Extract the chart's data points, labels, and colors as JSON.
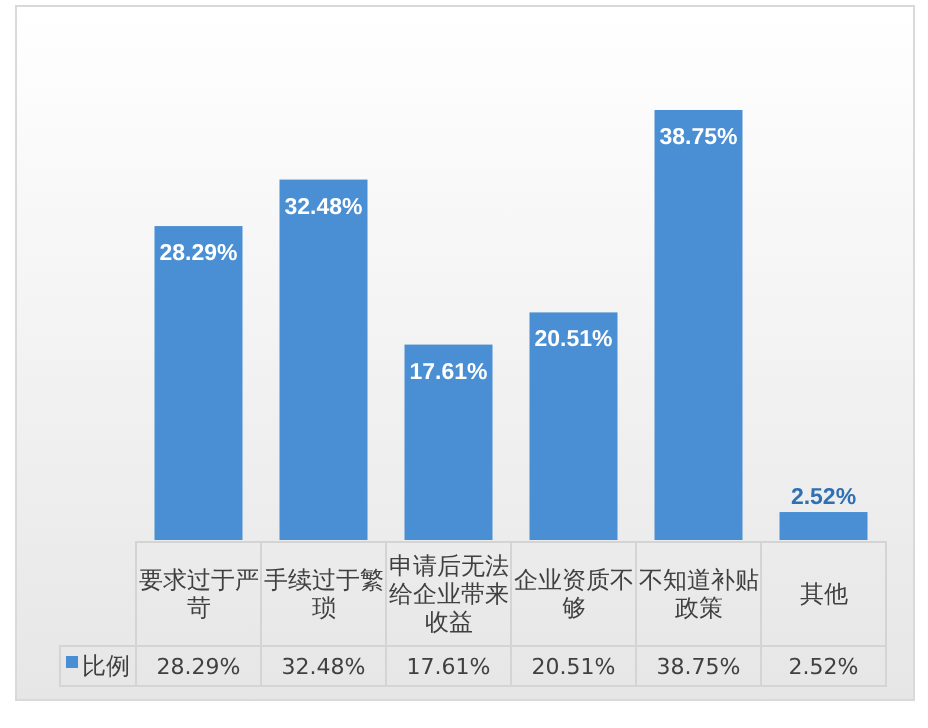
{
  "chart_data": {
    "type": "bar",
    "categories": [
      "要求过于严苛",
      "手续过于繁琐",
      "申请后无法给企业带来收益",
      "企业资质不够",
      "不知道补贴政策",
      "其他"
    ],
    "series": [
      {
        "name": "比例",
        "color": "#4a8fd4",
        "values": [
          28.29,
          32.48,
          17.61,
          20.51,
          38.75,
          2.52
        ],
        "value_labels": [
          "28.29%",
          "32.48%",
          "17.61%",
          "20.51%",
          "38.75%",
          "2.52%"
        ]
      }
    ],
    "legend": "bottom"
  }
}
